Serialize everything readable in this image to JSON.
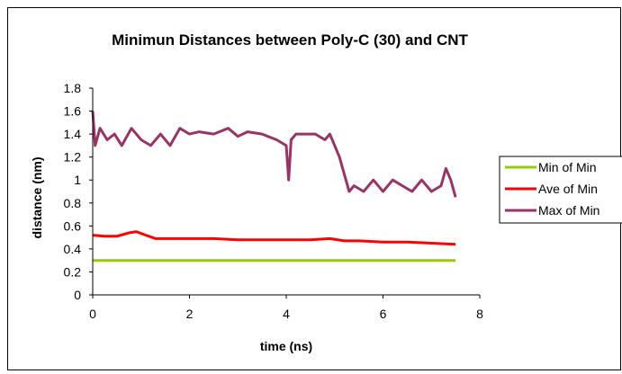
{
  "chart_data": {
    "type": "line",
    "title": "Minimun Distances between Poly-C (30) and CNT",
    "xlabel": "time (ns)",
    "ylabel": "distance (nm)",
    "xlim": [
      0,
      8
    ],
    "ylim": [
      0,
      1.8
    ],
    "x_ticks": [
      "0",
      "2",
      "4",
      "6",
      "8"
    ],
    "y_ticks": [
      "0",
      "0.2",
      "0.4",
      "0.6",
      "0.8",
      "1",
      "1.2",
      "1.4",
      "1.6",
      "1.8"
    ],
    "grid": false,
    "legend_position": "right",
    "series": [
      {
        "name": "Min of Min",
        "color": "#99cc00",
        "x": [
          0,
          0.5,
          1,
          1.5,
          2,
          2.5,
          3,
          3.5,
          4,
          4.5,
          5,
          5.5,
          6,
          6.5,
          7,
          7.5
        ],
        "values": [
          0.3,
          0.3,
          0.3,
          0.3,
          0.3,
          0.3,
          0.3,
          0.3,
          0.3,
          0.3,
          0.3,
          0.3,
          0.3,
          0.3,
          0.3,
          0.3
        ]
      },
      {
        "name": "Ave of Min",
        "color": "#ff0000",
        "x": [
          0,
          0.25,
          0.5,
          0.75,
          0.9,
          1.1,
          1.3,
          1.5,
          2,
          2.5,
          3,
          3.5,
          4,
          4.5,
          4.9,
          5.2,
          5.5,
          6,
          6.5,
          7,
          7.5
        ],
        "values": [
          0.52,
          0.51,
          0.51,
          0.54,
          0.55,
          0.52,
          0.49,
          0.49,
          0.49,
          0.49,
          0.48,
          0.48,
          0.48,
          0.48,
          0.49,
          0.47,
          0.47,
          0.46,
          0.46,
          0.45,
          0.44
        ]
      },
      {
        "name": "Max of Min",
        "color": "#993366",
        "x": [
          0,
          0.05,
          0.15,
          0.3,
          0.45,
          0.6,
          0.8,
          1.0,
          1.2,
          1.4,
          1.6,
          1.8,
          2.0,
          2.2,
          2.5,
          2.8,
          3.0,
          3.2,
          3.5,
          3.8,
          4.0,
          4.05,
          4.1,
          4.2,
          4.4,
          4.6,
          4.8,
          4.9,
          5.0,
          5.1,
          5.2,
          5.3,
          5.4,
          5.6,
          5.8,
          5.9,
          6.0,
          6.2,
          6.4,
          6.6,
          6.8,
          7.0,
          7.2,
          7.3,
          7.4,
          7.5
        ],
        "values": [
          1.6,
          1.3,
          1.45,
          1.35,
          1.4,
          1.3,
          1.45,
          1.35,
          1.3,
          1.4,
          1.3,
          1.45,
          1.4,
          1.42,
          1.4,
          1.45,
          1.38,
          1.42,
          1.4,
          1.35,
          1.3,
          1.0,
          1.35,
          1.4,
          1.4,
          1.4,
          1.35,
          1.4,
          1.3,
          1.2,
          1.05,
          0.9,
          0.95,
          0.9,
          1.0,
          0.95,
          0.9,
          1.0,
          0.95,
          0.9,
          1.0,
          0.9,
          0.95,
          1.1,
          1.0,
          0.85
        ]
      }
    ]
  }
}
